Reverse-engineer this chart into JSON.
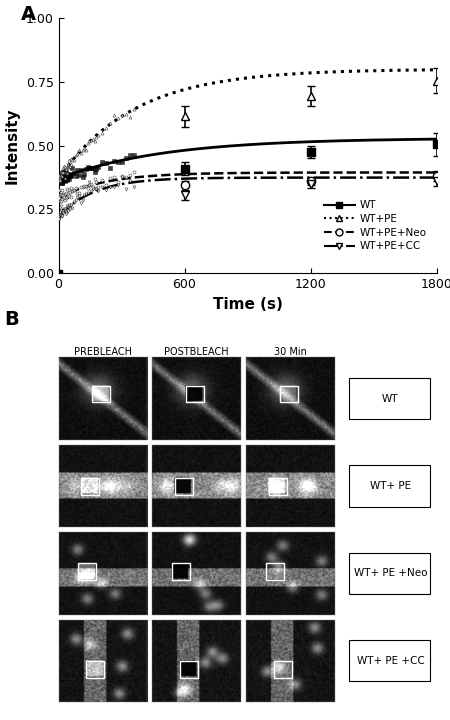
{
  "panel_A": {
    "xlabel": "Time (s)",
    "ylabel": "Intensity",
    "xlim": [
      0,
      1800
    ],
    "ylim": [
      0.0,
      1.0
    ],
    "xticks": [
      0,
      600,
      1200,
      1800
    ],
    "yticks": [
      0.0,
      0.25,
      0.5,
      0.75,
      1.0
    ],
    "series": {
      "WT": {
        "data_x": [
          600,
          1200,
          1800
        ],
        "data_y": [
          0.41,
          0.475,
          0.505
        ],
        "yerr": [
          0.025,
          0.025,
          0.045
        ],
        "marker": "s",
        "markerfacecolor": "black",
        "markeredgecolor": "black",
        "linestyle": "-",
        "linewidth": 2.0,
        "color": "black",
        "label": "WT",
        "plateau": 0.53,
        "I0": 0.37,
        "k": 0.002
      },
      "WT+PE": {
        "data_x": [
          600,
          1200,
          1800
        ],
        "data_y": [
          0.615,
          0.695,
          0.755
        ],
        "yerr": [
          0.04,
          0.04,
          0.05
        ],
        "marker": "^",
        "markerfacecolor": "white",
        "markeredgecolor": "black",
        "linestyle": ":",
        "linewidth": 2.2,
        "color": "black",
        "label": "WT+PE",
        "plateau": 0.8,
        "I0": 0.37,
        "k": 0.0028
      },
      "WT+PE+Neo": {
        "data_x": [
          600,
          1200,
          1800
        ],
        "data_y": [
          0.345,
          0.36,
          0.38
        ],
        "yerr": [
          0.018,
          0.015,
          0.02
        ],
        "marker": "o",
        "markerfacecolor": "white",
        "markeredgecolor": "black",
        "linestyle": "--",
        "linewidth": 1.8,
        "color": "black",
        "label": "WT+PE+Neo",
        "plateau": 0.395,
        "I0": 0.295,
        "k": 0.0045
      },
      "WT+PE+CC": {
        "data_x": [
          600,
          1200,
          1800
        ],
        "data_y": [
          0.305,
          0.35,
          0.36
        ],
        "yerr": [
          0.018,
          0.015,
          0.018
        ],
        "marker": "v",
        "markerfacecolor": "white",
        "markeredgecolor": "black",
        "linestyle": "-.",
        "linewidth": 1.8,
        "color": "black",
        "label": "WT+PE+CC",
        "plateau": 0.375,
        "I0": 0.22,
        "k": 0.006
      }
    },
    "legend_order": [
      "WT",
      "WT+PE",
      "WT+PE+Neo",
      "WT+PE+CC"
    ]
  },
  "panel_B": {
    "col_labels": [
      "PREBLEACH",
      "POSTBLEACH",
      "30 Min"
    ],
    "row_labels": [
      "WT",
      "WT+ PE",
      "WT+ PE +Neo",
      "WT+ PE +CC"
    ]
  }
}
